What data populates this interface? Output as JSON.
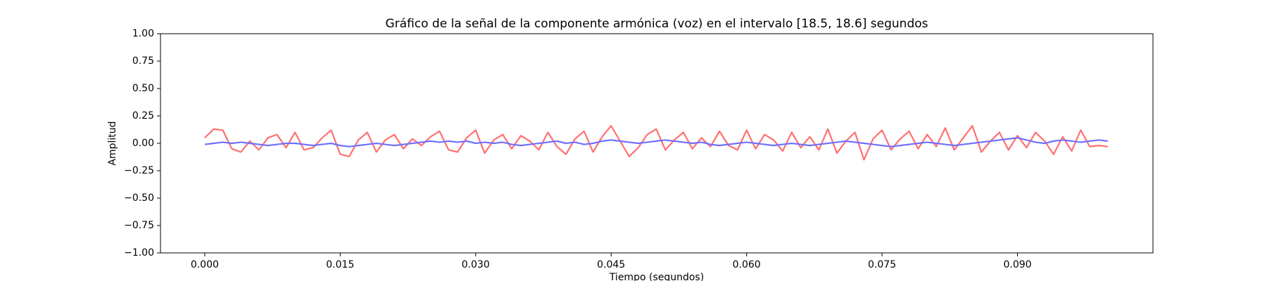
{
  "chart_data": {
    "type": "line",
    "title": "Gráfico de la señal de la componente armónica (voz) en el intervalo [18.5, 18.6] segundos",
    "xlabel": "Tiempo (segundos)",
    "ylabel": "Amplitud",
    "x": [
      0,
      0.001,
      0.002,
      0.003,
      0.004,
      0.005,
      0.006,
      0.007,
      0.008,
      0.009,
      0.01,
      0.011,
      0.012,
      0.013,
      0.014,
      0.015,
      0.016,
      0.017,
      0.018,
      0.019,
      0.02,
      0.021,
      0.022,
      0.023,
      0.024,
      0.025,
      0.026,
      0.027,
      0.028,
      0.029,
      0.03,
      0.031,
      0.032,
      0.033,
      0.034,
      0.035,
      0.036,
      0.037,
      0.038,
      0.039,
      0.04,
      0.041,
      0.042,
      0.043,
      0.044,
      0.045,
      0.046,
      0.047,
      0.048,
      0.049,
      0.05,
      0.051,
      0.052,
      0.053,
      0.054,
      0.055,
      0.056,
      0.057,
      0.058,
      0.059,
      0.06,
      0.061,
      0.062,
      0.063,
      0.064,
      0.065,
      0.066,
      0.067,
      0.068,
      0.069,
      0.07,
      0.071,
      0.072,
      0.073,
      0.074,
      0.075,
      0.076,
      0.077,
      0.078,
      0.079,
      0.08,
      0.081,
      0.082,
      0.083,
      0.084,
      0.085,
      0.086,
      0.087,
      0.088,
      0.089,
      0.09,
      0.091,
      0.092,
      0.093,
      0.094,
      0.095,
      0.096,
      0.097,
      0.098,
      0.099,
      0.1
    ],
    "series": [
      {
        "color": "#ff7070",
        "values": [
          0.05,
          0.13,
          0.12,
          -0.05,
          -0.08,
          0.02,
          -0.06,
          0.05,
          0.08,
          -0.04,
          0.1,
          -0.06,
          -0.04,
          0.05,
          0.12,
          -0.1,
          -0.12,
          0.03,
          0.1,
          -0.08,
          0.03,
          0.08,
          -0.05,
          0.04,
          -0.02,
          0.06,
          0.11,
          -0.06,
          -0.08,
          0.05,
          0.12,
          -0.09,
          0.03,
          0.08,
          -0.05,
          0.07,
          0.02,
          -0.06,
          0.1,
          -0.03,
          -0.1,
          0.04,
          0.11,
          -0.08,
          0.06,
          0.16,
          0.02,
          -0.12,
          -0.04,
          0.08,
          0.13,
          -0.06,
          0.03,
          0.1,
          -0.05,
          0.05,
          -0.03,
          0.11,
          -0.02,
          -0.06,
          0.12,
          -0.05,
          0.08,
          0.03,
          -0.07,
          0.1,
          -0.04,
          0.06,
          -0.06,
          0.13,
          -0.09,
          0.02,
          0.1,
          -0.15,
          0.04,
          0.12,
          -0.06,
          0.04,
          0.11,
          -0.05,
          0.08,
          -0.03,
          0.14,
          -0.06,
          0.05,
          0.16,
          -0.08,
          0.02,
          0.1,
          -0.06,
          0.07,
          -0.04,
          0.1,
          0.02,
          -0.1,
          0.06,
          -0.07,
          0.12,
          -0.03,
          -0.02,
          -0.03
        ]
      },
      {
        "color": "#7070ff",
        "values": [
          -0.01,
          0.0,
          0.01,
          0.0,
          0.01,
          0.0,
          -0.01,
          -0.02,
          -0.01,
          0.0,
          0.0,
          -0.01,
          -0.02,
          -0.01,
          0.0,
          -0.02,
          -0.03,
          -0.02,
          -0.01,
          0.0,
          -0.01,
          -0.02,
          -0.01,
          0.0,
          0.01,
          0.02,
          0.01,
          0.02,
          0.01,
          0.02,
          0.0,
          0.01,
          0.0,
          0.01,
          -0.01,
          -0.02,
          -0.01,
          0.0,
          0.01,
          0.02,
          0.0,
          0.01,
          -0.01,
          0.0,
          0.02,
          0.03,
          0.02,
          0.01,
          0.0,
          0.01,
          0.02,
          0.03,
          0.02,
          0.01,
          0.0,
          0.01,
          -0.01,
          -0.02,
          -0.01,
          0.0,
          0.01,
          0.0,
          -0.01,
          -0.02,
          -0.01,
          0.0,
          -0.01,
          -0.02,
          -0.01,
          0.0,
          0.01,
          0.02,
          0.01,
          0.0,
          -0.01,
          -0.02,
          -0.03,
          -0.02,
          -0.01,
          0.0,
          0.01,
          0.0,
          -0.01,
          -0.02,
          -0.01,
          0.0,
          0.01,
          0.02,
          0.03,
          0.04,
          0.05,
          0.03,
          0.01,
          0.0,
          0.02,
          0.03,
          0.02,
          0.01,
          0.02,
          0.03,
          0.02
        ]
      }
    ],
    "xlim": [
      -0.0049,
      0.105
    ],
    "xticks": [
      {
        "value": 0,
        "label": "0.000"
      },
      {
        "value": 0.015,
        "label": "0.015"
      },
      {
        "value": 0.03,
        "label": "0.030"
      },
      {
        "value": 0.045,
        "label": "0.045"
      },
      {
        "value": 0.06,
        "label": "0.060"
      },
      {
        "value": 0.075,
        "label": "0.075"
      },
      {
        "value": 0.09,
        "label": "0.090"
      }
    ],
    "ylim": [
      -1,
      1
    ],
    "yticks": [
      {
        "value": -1,
        "label": "−1.00"
      },
      {
        "value": -0.75,
        "label": "−0.75"
      },
      {
        "value": -0.5,
        "label": "−0.50"
      },
      {
        "value": -0.25,
        "label": "−0.25"
      },
      {
        "value": 0,
        "label": "0.00"
      },
      {
        "value": 0.25,
        "label": "0.25"
      },
      {
        "value": 0.5,
        "label": "0.50"
      },
      {
        "value": 0.75,
        "label": "0.75"
      },
      {
        "value": 1,
        "label": "1.00"
      }
    ],
    "grid": false
  }
}
